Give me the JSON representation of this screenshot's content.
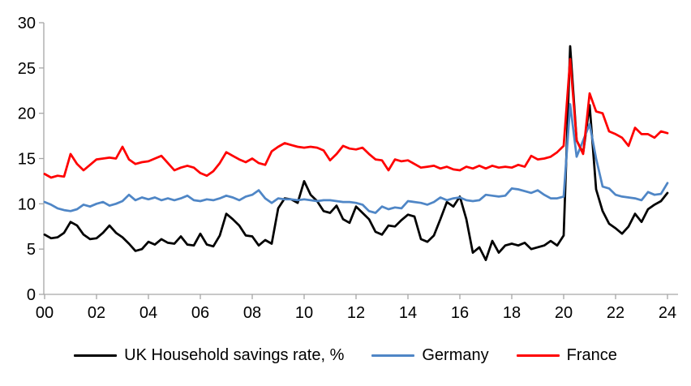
{
  "chart_data": {
    "type": "line",
    "title": "",
    "frequency": "quarterly",
    "x_start": "2000Q1",
    "x_end": "2024Q1",
    "x_tick_labels": [
      "00",
      "02",
      "04",
      "06",
      "08",
      "10",
      "12",
      "14",
      "16",
      "18",
      "20",
      "22",
      "24"
    ],
    "y_ticks": [
      0,
      5,
      10,
      15,
      20,
      25,
      30
    ],
    "ylim": [
      0,
      30
    ],
    "grid": "off",
    "legend_position": "bottom",
    "axis_color": "#A6A6A6",
    "text_color": "#000000",
    "series": [
      {
        "id": "uk",
        "name": "UK Household savings rate, %",
        "color": "#000000",
        "values": [
          6.6,
          6.2,
          6.3,
          6.8,
          8.0,
          7.6,
          6.6,
          6.1,
          6.2,
          6.8,
          7.6,
          6.8,
          6.3,
          5.6,
          4.8,
          5.0,
          5.8,
          5.5,
          6.1,
          5.7,
          5.6,
          6.4,
          5.5,
          5.4,
          6.7,
          5.5,
          5.3,
          6.5,
          8.9,
          8.3,
          7.6,
          6.5,
          6.4,
          5.4,
          6.0,
          5.6,
          9.5,
          10.6,
          10.5,
          10.1,
          12.5,
          11.0,
          10.3,
          9.2,
          9.0,
          9.8,
          8.3,
          7.9,
          9.7,
          9.0,
          8.3,
          6.9,
          6.6,
          7.6,
          7.5,
          8.2,
          8.8,
          8.6,
          6.1,
          5.8,
          6.5,
          8.3,
          10.2,
          9.7,
          10.8,
          8.3,
          4.6,
          5.2,
          3.8,
          5.9,
          4.6,
          5.4,
          5.6,
          5.4,
          5.7,
          5.0,
          5.2,
          5.4,
          5.9,
          5.4,
          6.5,
          27.4,
          17.0,
          15.6,
          20.9,
          11.6,
          9.2,
          7.8,
          7.3,
          6.7,
          7.5,
          8.9,
          8.0,
          9.4,
          9.9,
          10.3,
          11.2
        ]
      },
      {
        "id": "germany",
        "name": "Germany",
        "color": "#4F86C6",
        "values": [
          10.2,
          9.9,
          9.5,
          9.3,
          9.2,
          9.4,
          9.9,
          9.7,
          10.0,
          10.2,
          9.8,
          10.0,
          10.3,
          11.0,
          10.4,
          10.7,
          10.5,
          10.7,
          10.4,
          10.6,
          10.4,
          10.6,
          10.9,
          10.4,
          10.3,
          10.5,
          10.4,
          10.6,
          10.9,
          10.7,
          10.4,
          10.8,
          11.0,
          11.5,
          10.6,
          10.1,
          10.6,
          10.5,
          10.5,
          10.4,
          10.5,
          10.4,
          10.3,
          10.4,
          10.4,
          10.3,
          10.2,
          10.2,
          10.1,
          9.9,
          9.2,
          9.0,
          9.7,
          9.4,
          9.6,
          9.5,
          10.3,
          10.2,
          10.1,
          9.9,
          10.2,
          10.7,
          10.4,
          10.6,
          10.7,
          10.4,
          10.3,
          10.4,
          11.0,
          10.9,
          10.8,
          10.9,
          11.7,
          11.6,
          11.4,
          11.2,
          11.5,
          11.0,
          10.6,
          10.6,
          10.8,
          21.0,
          15.2,
          17.0,
          18.8,
          15.0,
          11.9,
          11.7,
          11.0,
          10.8,
          10.7,
          10.6,
          10.4,
          11.3,
          11.0,
          11.1,
          12.3
        ]
      },
      {
        "id": "france",
        "name": "France",
        "color": "#FF0000",
        "values": [
          13.3,
          12.9,
          13.1,
          13.0,
          15.5,
          14.4,
          13.7,
          14.3,
          14.9,
          15.0,
          15.1,
          15.0,
          16.3,
          14.9,
          14.4,
          14.6,
          14.7,
          15.0,
          15.3,
          14.5,
          13.7,
          14.0,
          14.2,
          14.0,
          13.4,
          13.1,
          13.6,
          14.5,
          15.7,
          15.3,
          14.9,
          14.6,
          15.0,
          14.5,
          14.3,
          15.8,
          16.3,
          16.7,
          16.5,
          16.3,
          16.2,
          16.3,
          16.2,
          15.9,
          14.8,
          15.5,
          16.4,
          16.1,
          16.0,
          16.2,
          15.5,
          14.9,
          14.8,
          13.7,
          14.9,
          14.7,
          14.8,
          14.4,
          14.0,
          14.1,
          14.2,
          13.9,
          14.1,
          13.8,
          13.7,
          14.1,
          13.9,
          14.2,
          13.9,
          14.2,
          14.0,
          14.1,
          14.0,
          14.3,
          14.1,
          15.3,
          14.9,
          15.0,
          15.2,
          15.7,
          16.4,
          26.0,
          17.0,
          15.5,
          22.2,
          20.2,
          20.0,
          18.0,
          17.7,
          17.3,
          16.4,
          18.4,
          17.7,
          17.7,
          17.3,
          18.0,
          17.8
        ]
      }
    ]
  }
}
